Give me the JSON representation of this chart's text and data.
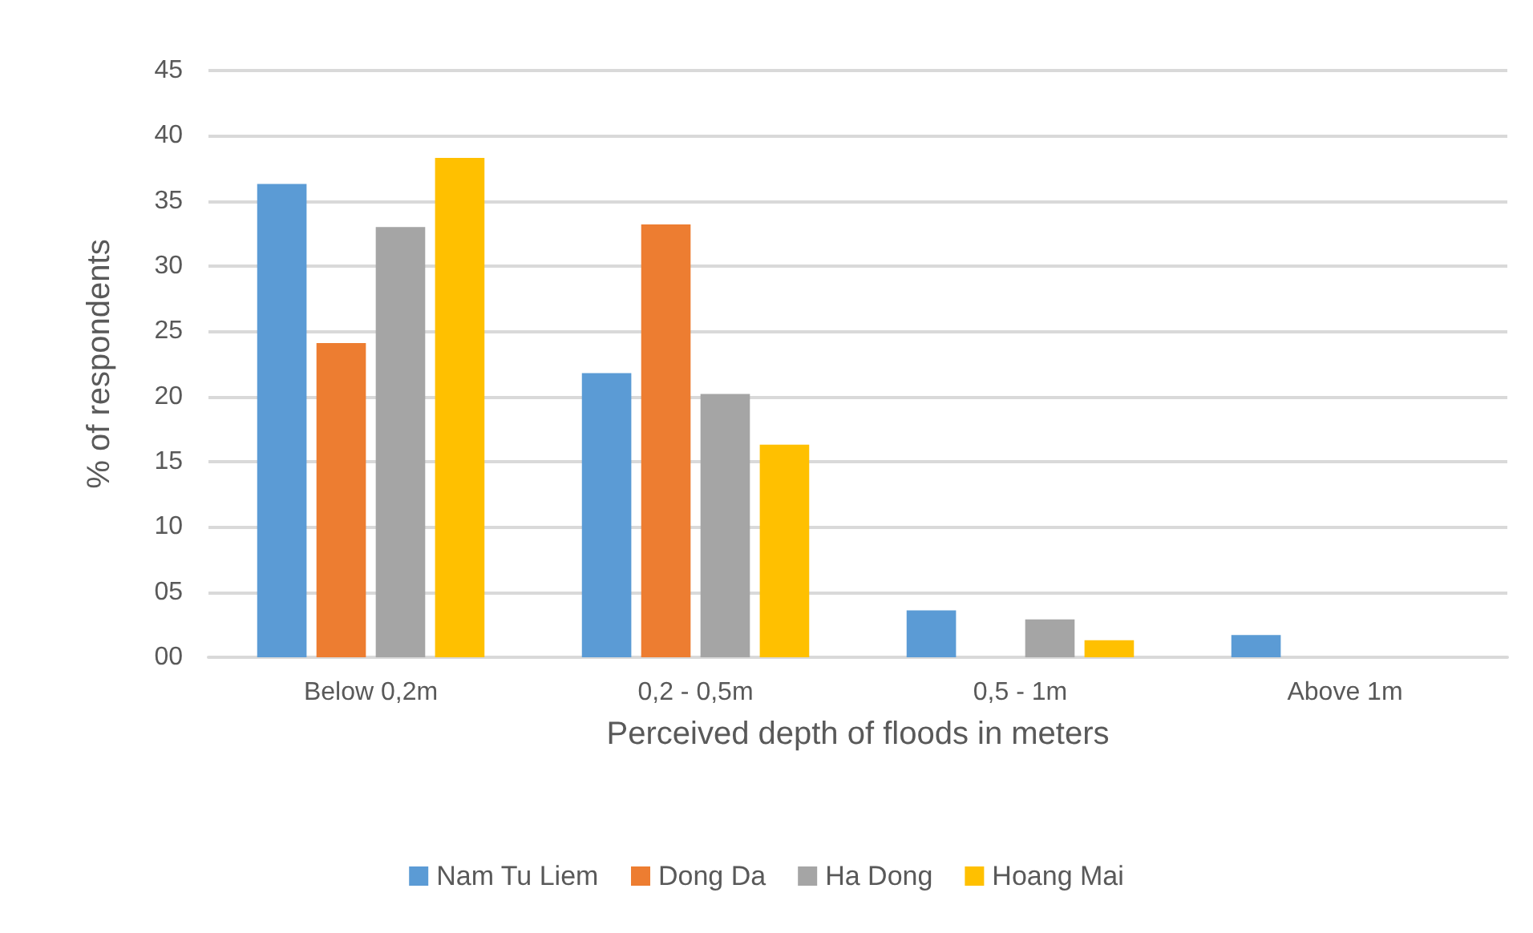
{
  "chart_data": {
    "type": "bar",
    "xlabel": "Perceived depth of floods in meters",
    "ylabel": "% of respondents",
    "categories": [
      "Below 0,2m",
      "0,2 - 0,5m",
      "0,5 - 1m",
      "Above 1m"
    ],
    "series": [
      {
        "name": "Nam Tu Liem",
        "color": "#5b9bd5",
        "values": [
          36.3,
          21.8,
          3.6,
          1.7
        ]
      },
      {
        "name": "Dong Da",
        "color": "#ed7d31",
        "values": [
          24.1,
          33.2,
          0,
          0
        ]
      },
      {
        "name": "Ha Dong",
        "color": "#a5a5a5",
        "values": [
          33.0,
          20.2,
          2.9,
          0
        ]
      },
      {
        "name": "Hoang Mai",
        "color": "#ffc000",
        "values": [
          38.3,
          16.3,
          1.3,
          0
        ]
      }
    ],
    "ylim": [
      0,
      45
    ],
    "yticks": [
      {
        "value": 0,
        "label": "00"
      },
      {
        "value": 5,
        "label": "05"
      },
      10,
      15,
      20,
      25,
      30,
      35,
      40,
      45
    ],
    "grid": "y",
    "legend": "bottom"
  }
}
